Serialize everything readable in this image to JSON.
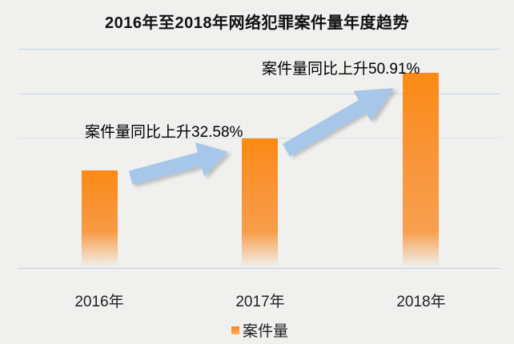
{
  "title": "2016年至2018年网络犯罪案件量年度趋势",
  "chart_data": {
    "type": "bar",
    "title": "2016年至2018年网络犯罪案件量年度趋势",
    "categories": [
      "2016年",
      "2017年",
      "2018年"
    ],
    "series": [
      {
        "name": "案件量",
        "values": [
          100,
          132.58,
          200.09
        ],
        "unit": "relative index (2016 = 100; absolute case counts not shown on chart)"
      }
    ],
    "yoy_growth_pct": [
      null,
      32.58,
      50.91
    ],
    "annotations": [
      {
        "text": "案件量同比上升32.58%",
        "target": "2017年"
      },
      {
        "text": "案件量同比上升50.91%",
        "target": "2018年"
      }
    ],
    "legend": {
      "position": "bottom",
      "entries": [
        "案件量"
      ]
    },
    "xlabel": "",
    "ylabel": "",
    "y_tick_labels_shown": false,
    "gridlines": "horizontal",
    "colors": {
      "bar_top": "#fb8a15",
      "bar_fade_bottom": "#f0f0ee",
      "arrow": "#a7c7ea",
      "gridline": "#c6d6e9",
      "axis_line": "#c6cce8",
      "background": "#f0f0ee",
      "text": "#111111"
    }
  }
}
